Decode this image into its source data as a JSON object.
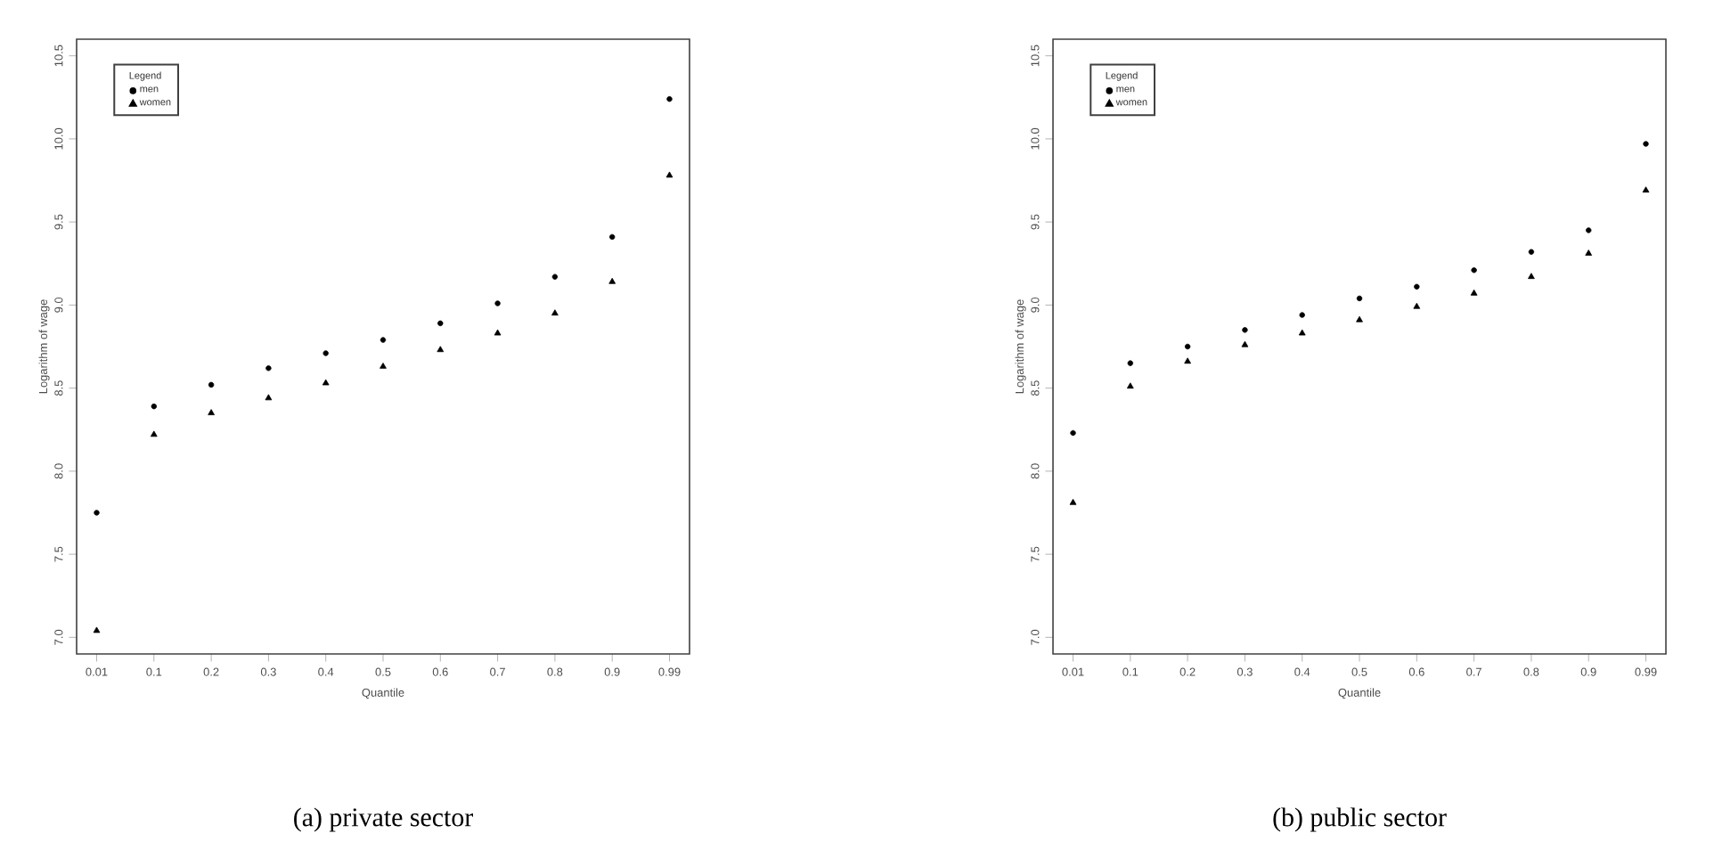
{
  "chart_data": [
    {
      "type": "scatter",
      "title": "(a) private sector",
      "xlabel": "Quantile",
      "ylabel": "Logarithm of wage",
      "legend_title": "Legend",
      "legend": "top left",
      "categories": [
        "0.01",
        "0.1",
        "0.2",
        "0.3",
        "0.4",
        "0.5",
        "0.6",
        "0.7",
        "0.8",
        "0.9",
        "0.99"
      ],
      "ylim": [
        6.9,
        10.6
      ],
      "yticks": [
        {
          "value": 7.0,
          "label": "7.0"
        },
        {
          "value": 7.5,
          "label": "7.5"
        },
        {
          "value": 8.0,
          "label": "8.0"
        },
        {
          "value": 8.5,
          "label": "8.5"
        },
        {
          "value": 9.0,
          "label": "9.0"
        },
        {
          "value": 9.5,
          "label": "9.5"
        },
        {
          "value": 10.0,
          "label": "10.0"
        },
        {
          "value": 10.5,
          "label": "10.5"
        }
      ],
      "series": [
        {
          "name": "men",
          "color": "#000000",
          "marker": "circle",
          "values": [
            7.75,
            8.39,
            8.52,
            8.62,
            8.71,
            8.79,
            8.89,
            9.01,
            9.17,
            9.41,
            10.24
          ]
        },
        {
          "name": "women",
          "color": "#000000",
          "marker": "triangle",
          "values": [
            7.04,
            8.22,
            8.35,
            8.44,
            8.53,
            8.63,
            8.73,
            8.83,
            8.95,
            9.14,
            9.78
          ]
        }
      ]
    },
    {
      "type": "scatter",
      "title": "(b) public sector",
      "xlabel": "Quantile",
      "ylabel": "Logarithm of wage",
      "legend_title": "Legend",
      "legend": "top left",
      "categories": [
        "0.01",
        "0.1",
        "0.2",
        "0.3",
        "0.4",
        "0.5",
        "0.6",
        "0.7",
        "0.8",
        "0.9",
        "0.99"
      ],
      "ylim": [
        6.9,
        10.6
      ],
      "yticks": [
        {
          "value": 7.0,
          "label": "7.0"
        },
        {
          "value": 7.5,
          "label": "7.5"
        },
        {
          "value": 8.0,
          "label": "8.0"
        },
        {
          "value": 8.5,
          "label": "8.5"
        },
        {
          "value": 9.0,
          "label": "9.0"
        },
        {
          "value": 9.5,
          "label": "9.5"
        },
        {
          "value": 10.0,
          "label": "10.0"
        },
        {
          "value": 10.5,
          "label": "10.5"
        }
      ],
      "series": [
        {
          "name": "men",
          "color": "#000000",
          "marker": "circle",
          "values": [
            8.23,
            8.65,
            8.75,
            8.85,
            8.94,
            9.04,
            9.11,
            9.21,
            9.32,
            9.45,
            9.97
          ]
        },
        {
          "name": "women",
          "color": "#000000",
          "marker": "triangle",
          "values": [
            7.81,
            8.51,
            8.66,
            8.76,
            8.83,
            8.91,
            8.99,
            9.07,
            9.17,
            9.31,
            9.69
          ]
        }
      ]
    }
  ]
}
